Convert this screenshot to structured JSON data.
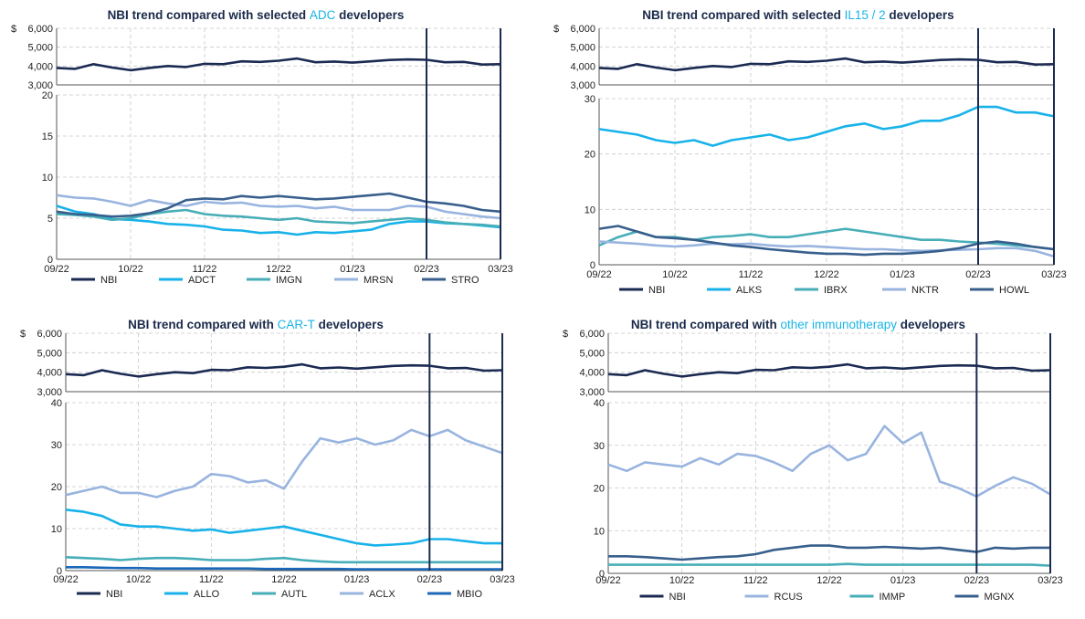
{
  "chart_data": [
    {
      "type": "line",
      "title": {
        "prefix": "NBI trend compared with selected ",
        "highlight": "ADC",
        "suffix": " developers"
      },
      "currency_label": "$",
      "x_ticks": [
        "09/22",
        "10/22",
        "11/22",
        "12/22",
        "01/23",
        "02/23",
        "03/23"
      ],
      "vertical_marker_at": "02/23",
      "top_panel": {
        "ylim": [
          3000,
          6000
        ],
        "ticks": [
          3000,
          4000,
          5000,
          6000
        ],
        "tick_labels": [
          "3,000",
          "4,000",
          "5,000",
          "6,000"
        ],
        "series": [
          {
            "name": "NBI",
            "color": "#1b2a52",
            "values": [
              3900,
              3850,
              4100,
              3920,
              3780,
              3900,
              4000,
              3950,
              4120,
              4100,
              4250,
              4220,
              4280,
              4400,
              4200,
              4240,
              4180,
              4250,
              4320,
              4350,
              4330,
              4200,
              4220,
              4080,
              4100
            ]
          }
        ]
      },
      "bottom_panel": {
        "ylim": [
          0,
          20
        ],
        "ticks": [
          0,
          5,
          10,
          15,
          20
        ],
        "tick_labels": [
          "0",
          "5",
          "10",
          "15",
          "20"
        ],
        "series": [
          {
            "name": "NBI",
            "color": "#1b2a52",
            "values": []
          },
          {
            "name": "ADCT",
            "color": "#18b2ea",
            "values": [
              6.5,
              5.8,
              5.5,
              4.9,
              4.8,
              4.6,
              4.3,
              4.2,
              4.0,
              3.6,
              3.5,
              3.2,
              3.3,
              3.0,
              3.3,
              3.2,
              3.4,
              3.6,
              4.3,
              4.6,
              4.6,
              4.4,
              4.3,
              4.1,
              3.9
            ]
          },
          {
            "name": "IMGN",
            "color": "#47aeb8",
            "values": [
              5.5,
              5.4,
              5.2,
              4.8,
              5.0,
              5.5,
              5.8,
              6.0,
              5.5,
              5.3,
              5.2,
              5.0,
              4.8,
              5.0,
              4.6,
              4.5,
              4.4,
              4.6,
              4.8,
              5.0,
              4.8,
              4.5,
              4.3,
              4.2,
              4.0
            ]
          },
          {
            "name": "MRSN",
            "color": "#98b4df",
            "values": [
              7.8,
              7.5,
              7.4,
              7.0,
              6.5,
              7.2,
              6.8,
              6.5,
              7.0,
              6.8,
              6.9,
              6.5,
              6.4,
              6.5,
              6.2,
              6.4,
              6.0,
              6.0,
              6.0,
              6.5,
              6.4,
              5.8,
              5.5,
              5.2,
              5.0
            ]
          },
          {
            "name": "STRO",
            "color": "#385f8c",
            "values": [
              5.8,
              5.5,
              5.4,
              5.2,
              5.3,
              5.6,
              6.2,
              7.2,
              7.4,
              7.3,
              7.7,
              7.5,
              7.7,
              7.5,
              7.3,
              7.4,
              7.6,
              7.8,
              8.0,
              7.5,
              7.0,
              6.8,
              6.5,
              6.0,
              5.8
            ]
          }
        ]
      },
      "legend": [
        "NBI",
        "ADCT",
        "IMGN",
        "MRSN",
        "STRO"
      ]
    },
    {
      "type": "line",
      "title": {
        "prefix": "NBI trend compared with selected ",
        "highlight": "IL15 / 2",
        "suffix": " developers"
      },
      "currency_label": "$",
      "x_ticks": [
        "09/22",
        "10/22",
        "11/22",
        "12/22",
        "01/23",
        "02/23",
        "03/23"
      ],
      "vertical_marker_at": "02/23",
      "top_panel": {
        "ylim": [
          3000,
          6000
        ],
        "ticks": [
          3000,
          4000,
          5000,
          6000
        ],
        "tick_labels": [
          "3,000",
          "4,000",
          "5,000",
          "6,000"
        ],
        "series": [
          {
            "name": "NBI",
            "color": "#1b2a52",
            "values": [
              3900,
              3850,
              4100,
              3920,
              3780,
              3900,
              4000,
              3950,
              4120,
              4100,
              4250,
              4220,
              4280,
              4400,
              4200,
              4240,
              4180,
              4250,
              4320,
              4350,
              4330,
              4200,
              4220,
              4080,
              4100
            ]
          }
        ]
      },
      "bottom_panel": {
        "ylim": [
          0,
          30
        ],
        "ticks": [
          0,
          10,
          20,
          30
        ],
        "tick_labels": [
          "0",
          "10",
          "20",
          "30"
        ],
        "series": [
          {
            "name": "NBI",
            "color": "#1b2a52",
            "values": []
          },
          {
            "name": "ALKS",
            "color": "#18b2ea",
            "values": [
              24.5,
              24.0,
              23.5,
              22.5,
              22.0,
              22.5,
              21.5,
              22.5,
              23.0,
              23.5,
              22.5,
              23.0,
              24.0,
              25.0,
              25.5,
              24.5,
              25.0,
              26.0,
              26.0,
              27.0,
              28.5,
              28.5,
              27.5,
              27.5,
              26.8
            ]
          },
          {
            "name": "IBRX",
            "color": "#47aeb8",
            "values": [
              3.5,
              5.0,
              6.0,
              5.0,
              5.0,
              4.5,
              5.0,
              5.2,
              5.5,
              5.0,
              5.0,
              5.5,
              6.0,
              6.5,
              6.0,
              5.5,
              5.0,
              4.5,
              4.5,
              4.2,
              4.0,
              3.8,
              3.5,
              3.2,
              2.8
            ]
          },
          {
            "name": "NKTR",
            "color": "#98b4df",
            "values": [
              4.2,
              4.0,
              3.8,
              3.5,
              3.3,
              3.5,
              3.8,
              3.7,
              3.8,
              3.5,
              3.3,
              3.4,
              3.2,
              3.0,
              2.8,
              2.8,
              2.6,
              2.5,
              2.6,
              2.7,
              2.8,
              3.0,
              3.0,
              2.5,
              1.5
            ]
          },
          {
            "name": "HOWL",
            "color": "#385f8c",
            "values": [
              6.5,
              7.0,
              6.0,
              5.0,
              4.8,
              4.5,
              4.0,
              3.5,
              3.2,
              2.8,
              2.5,
              2.2,
              2.0,
              2.0,
              1.8,
              2.0,
              2.0,
              2.2,
              2.5,
              3.0,
              3.8,
              4.2,
              3.8,
              3.2,
              2.8
            ]
          }
        ]
      },
      "legend": [
        "NBI",
        "ALKS",
        "IBRX",
        "NKTR",
        "HOWL"
      ]
    },
    {
      "type": "line",
      "title": {
        "prefix": "NBI trend compared with ",
        "highlight": "CAR-T",
        "suffix": " developers"
      },
      "currency_label": "$",
      "x_ticks": [
        "09/22",
        "10/22",
        "11/22",
        "12/22",
        "01/23",
        "02/23",
        "03/23"
      ],
      "vertical_marker_at": "02/23",
      "top_panel": {
        "ylim": [
          3000,
          6000
        ],
        "ticks": [
          3000,
          4000,
          5000,
          6000
        ],
        "tick_labels": [
          "3,000",
          "4,000",
          "5,000",
          "6,000"
        ],
        "series": [
          {
            "name": "NBI",
            "color": "#1b2a52",
            "values": [
              3900,
              3850,
              4100,
              3920,
              3780,
              3900,
              4000,
              3950,
              4120,
              4100,
              4250,
              4220,
              4280,
              4400,
              4200,
              4240,
              4180,
              4250,
              4320,
              4350,
              4330,
              4200,
              4220,
              4080,
              4100
            ]
          }
        ]
      },
      "bottom_panel": {
        "ylim": [
          0,
          40
        ],
        "ticks": [
          0,
          10,
          20,
          30,
          40
        ],
        "tick_labels": [
          "0",
          "10",
          "20",
          "30",
          "40"
        ],
        "series": [
          {
            "name": "NBI",
            "color": "#1b2a52",
            "values": []
          },
          {
            "name": "ALLO",
            "color": "#18b2ea",
            "values": [
              14.5,
              14.0,
              13.0,
              11.0,
              10.5,
              10.5,
              10.0,
              9.5,
              9.8,
              9.0,
              9.5,
              10.0,
              10.5,
              9.5,
              8.5,
              7.5,
              6.5,
              6.0,
              6.2,
              6.5,
              7.5,
              7.5,
              7.0,
              6.5,
              6.5
            ]
          },
          {
            "name": "AUTL",
            "color": "#47aeb8",
            "values": [
              3.2,
              3.0,
              2.8,
              2.5,
              2.8,
              3.0,
              3.0,
              2.8,
              2.5,
              2.5,
              2.5,
              2.8,
              3.0,
              2.5,
              2.2,
              2.0,
              2.0,
              2.0,
              2.0,
              2.0,
              2.0,
              2.0,
              2.0,
              2.0,
              2.0
            ]
          },
          {
            "name": "ACLX",
            "color": "#98b4df",
            "values": [
              18.0,
              19.0,
              20.0,
              18.5,
              18.5,
              17.5,
              19.0,
              20.0,
              23.0,
              22.5,
              21.0,
              21.5,
              19.5,
              26.0,
              31.5,
              30.5,
              31.5,
              30.0,
              31.0,
              33.5,
              32.0,
              33.5,
              31.0,
              29.5,
              28.0
            ]
          },
          {
            "name": "MBIO",
            "color": "#1b68b8",
            "values": [
              0.8,
              0.8,
              0.7,
              0.6,
              0.6,
              0.5,
              0.5,
              0.5,
              0.5,
              0.5,
              0.5,
              0.4,
              0.4,
              0.4,
              0.4,
              0.4,
              0.3,
              0.3,
              0.3,
              0.3,
              0.3,
              0.3,
              0.3,
              0.3,
              0.3
            ]
          }
        ]
      },
      "legend": [
        "NBI",
        "ALLO",
        "AUTL",
        "ACLX",
        "MBIO"
      ]
    },
    {
      "type": "line",
      "title": {
        "prefix": "NBI trend compared with ",
        "highlight": "other immunotherapy",
        "suffix": " developers"
      },
      "currency_label": "$",
      "x_ticks": [
        "09/22",
        "10/22",
        "11/22",
        "12/22",
        "01/23",
        "02/23",
        "03/23"
      ],
      "vertical_marker_at": "02/23",
      "top_panel": {
        "ylim": [
          3000,
          6000
        ],
        "ticks": [
          3000,
          4000,
          5000,
          6000
        ],
        "tick_labels": [
          "3,000",
          "4,000",
          "5,000",
          "6,000"
        ],
        "series": [
          {
            "name": "NBI",
            "color": "#1b2a52",
            "values": [
              3900,
              3850,
              4100,
              3920,
              3780,
              3900,
              4000,
              3950,
              4120,
              4100,
              4250,
              4220,
              4280,
              4400,
              4200,
              4240,
              4180,
              4250,
              4320,
              4350,
              4330,
              4200,
              4220,
              4080,
              4100
            ]
          }
        ]
      },
      "bottom_panel": {
        "ylim": [
          0,
          40
        ],
        "ticks": [
          0,
          10,
          20,
          30,
          40
        ],
        "tick_labels": [
          "0",
          "10",
          "20",
          "30",
          "40"
        ],
        "series": [
          {
            "name": "NBI",
            "color": "#1b2a52",
            "values": []
          },
          {
            "name": "RCUS",
            "color": "#98b4df",
            "values": [
              25.5,
              24.0,
              26.0,
              25.5,
              25.0,
              27.0,
              25.5,
              28.0,
              27.5,
              26.0,
              24.0,
              28.0,
              30.0,
              26.5,
              28.0,
              34.5,
              30.5,
              33.0,
              21.5,
              20.0,
              18.0,
              20.5,
              22.5,
              21.0,
              18.5
            ]
          },
          {
            "name": "IMMP",
            "color": "#47aeb8",
            "values": [
              2.0,
              2.0,
              2.0,
              2.0,
              2.0,
              2.0,
              2.0,
              2.0,
              2.0,
              2.0,
              2.0,
              2.0,
              2.0,
              2.2,
              2.0,
              2.0,
              2.0,
              2.0,
              2.0,
              2.0,
              2.0,
              2.0,
              2.0,
              2.0,
              1.8
            ]
          },
          {
            "name": "MGNX",
            "color": "#385f8c",
            "values": [
              4.0,
              4.0,
              3.8,
              3.5,
              3.2,
              3.5,
              3.8,
              4.0,
              4.5,
              5.5,
              6.0,
              6.5,
              6.5,
              6.0,
              6.0,
              6.2,
              6.0,
              5.8,
              6.0,
              5.5,
              5.0,
              6.0,
              5.8,
              6.0,
              6.0
            ]
          }
        ]
      },
      "legend": [
        "NBI",
        "RCUS",
        "IMMP",
        "MGNX"
      ]
    }
  ]
}
